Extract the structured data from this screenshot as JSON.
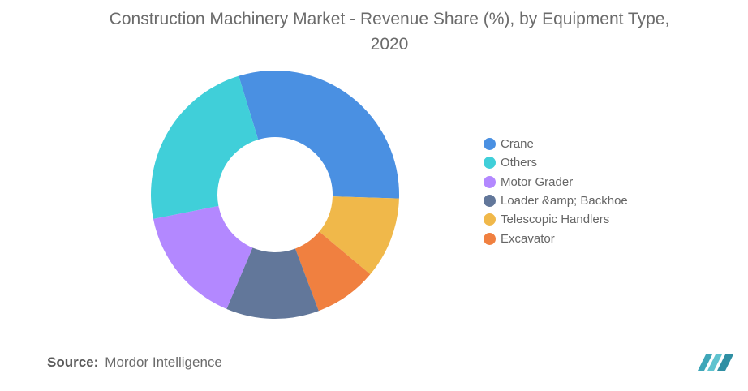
{
  "chart_data": {
    "type": "pie",
    "donut": true,
    "title_lines": [
      "Construction Machinery Market - Revenue Share (%), by Equipment Type,",
      "2020"
    ],
    "categories": [
      "Crane",
      "Telescopic Handlers",
      "Excavator",
      "Loader &amp; Backhoe",
      "Motor Grader",
      "Others"
    ],
    "legend_order": [
      "Crane",
      "Others",
      "Motor Grader",
      "Loader &amp; Backhoe",
      "Telescopic Handlers",
      "Excavator"
    ],
    "values": [
      30.2,
      10.6,
      8.2,
      12.1,
      15.5,
      23.4
    ],
    "colors": {
      "Crane": "#4a90e2",
      "Others": "#40cfd9",
      "Motor Grader": "#b388ff",
      "Loader &amp; Backhoe": "#62779a",
      "Telescopic Handlers": "#f0b84a",
      "Excavator": "#f08040"
    },
    "legend_position": "right"
  },
  "source": {
    "label": "Source:",
    "text": "Mordor Intelligence"
  },
  "logo": {
    "icon": "mordor-intelligence-logo-icon",
    "color": "#3fa6b8"
  }
}
